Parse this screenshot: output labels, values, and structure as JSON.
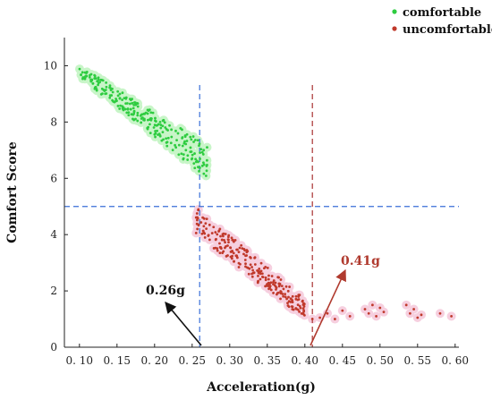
{
  "chart_data": {
    "type": "scatter",
    "xlabel": "Acceleration(g)",
    "ylabel": "Comfort Score",
    "xlim": [
      0.08,
      0.605
    ],
    "ylim": [
      0,
      11
    ],
    "xticks": [
      "0. 10",
      "0. 15",
      "0. 20",
      "0. 25",
      "0. 30",
      "0. 35",
      "0. 40",
      "0. 45",
      "0. 50",
      "0. 55",
      "0. 60"
    ],
    "xtick_values": [
      0.1,
      0.15,
      0.2,
      0.25,
      0.3,
      0.35,
      0.4,
      0.45,
      0.5,
      0.55,
      0.6
    ],
    "yticks": [
      "0",
      "2",
      "4",
      "6",
      "8",
      "10"
    ],
    "ytick_values": [
      0,
      2,
      4,
      6,
      8,
      10
    ],
    "legend_position": "top-right",
    "series": [
      {
        "name": "comfortable",
        "color": "#2ecc40",
        "glow": "#c8f5c8",
        "band": {
          "x_range": [
            0.1,
            0.27
          ],
          "y_start": [
            9.6,
            10.0
          ],
          "y_end": [
            6.0,
            7.2
          ],
          "count": 260
        }
      },
      {
        "name": "uncomfortable",
        "color": "#c0392b",
        "glow": "#f6cfdf",
        "band": {
          "x_range": [
            0.255,
            0.4
          ],
          "y_start": [
            4.0,
            5.0
          ],
          "y_end": [
            1.0,
            1.7
          ],
          "count": 240
        },
        "tail_points": [
          [
            0.41,
            1.0
          ],
          [
            0.42,
            1.05
          ],
          [
            0.43,
            1.2
          ],
          [
            0.44,
            1.0
          ],
          [
            0.45,
            1.3
          ],
          [
            0.46,
            1.1
          ],
          [
            0.48,
            1.35
          ],
          [
            0.485,
            1.2
          ],
          [
            0.49,
            1.5
          ],
          [
            0.495,
            1.1
          ],
          [
            0.5,
            1.4
          ],
          [
            0.505,
            1.25
          ],
          [
            0.535,
            1.5
          ],
          [
            0.54,
            1.2
          ],
          [
            0.545,
            1.35
          ],
          [
            0.55,
            1.05
          ],
          [
            0.555,
            1.15
          ],
          [
            0.58,
            1.2
          ],
          [
            0.595,
            1.1
          ]
        ]
      }
    ],
    "reference_lines": [
      {
        "orientation": "horizontal",
        "value": 5.0,
        "color": "#3a6fd8",
        "style": "dashed"
      },
      {
        "orientation": "vertical",
        "value": 0.26,
        "color": "#3a6fd8",
        "style": "dashed"
      },
      {
        "orientation": "vertical",
        "value": 0.41,
        "color": "#a83232",
        "style": "dashed"
      }
    ],
    "annotations": [
      {
        "text": "0.26g",
        "x": 0.26,
        "color": "#111111"
      },
      {
        "text": "0.41g",
        "x": 0.41,
        "color": "#b03a2e"
      }
    ]
  }
}
